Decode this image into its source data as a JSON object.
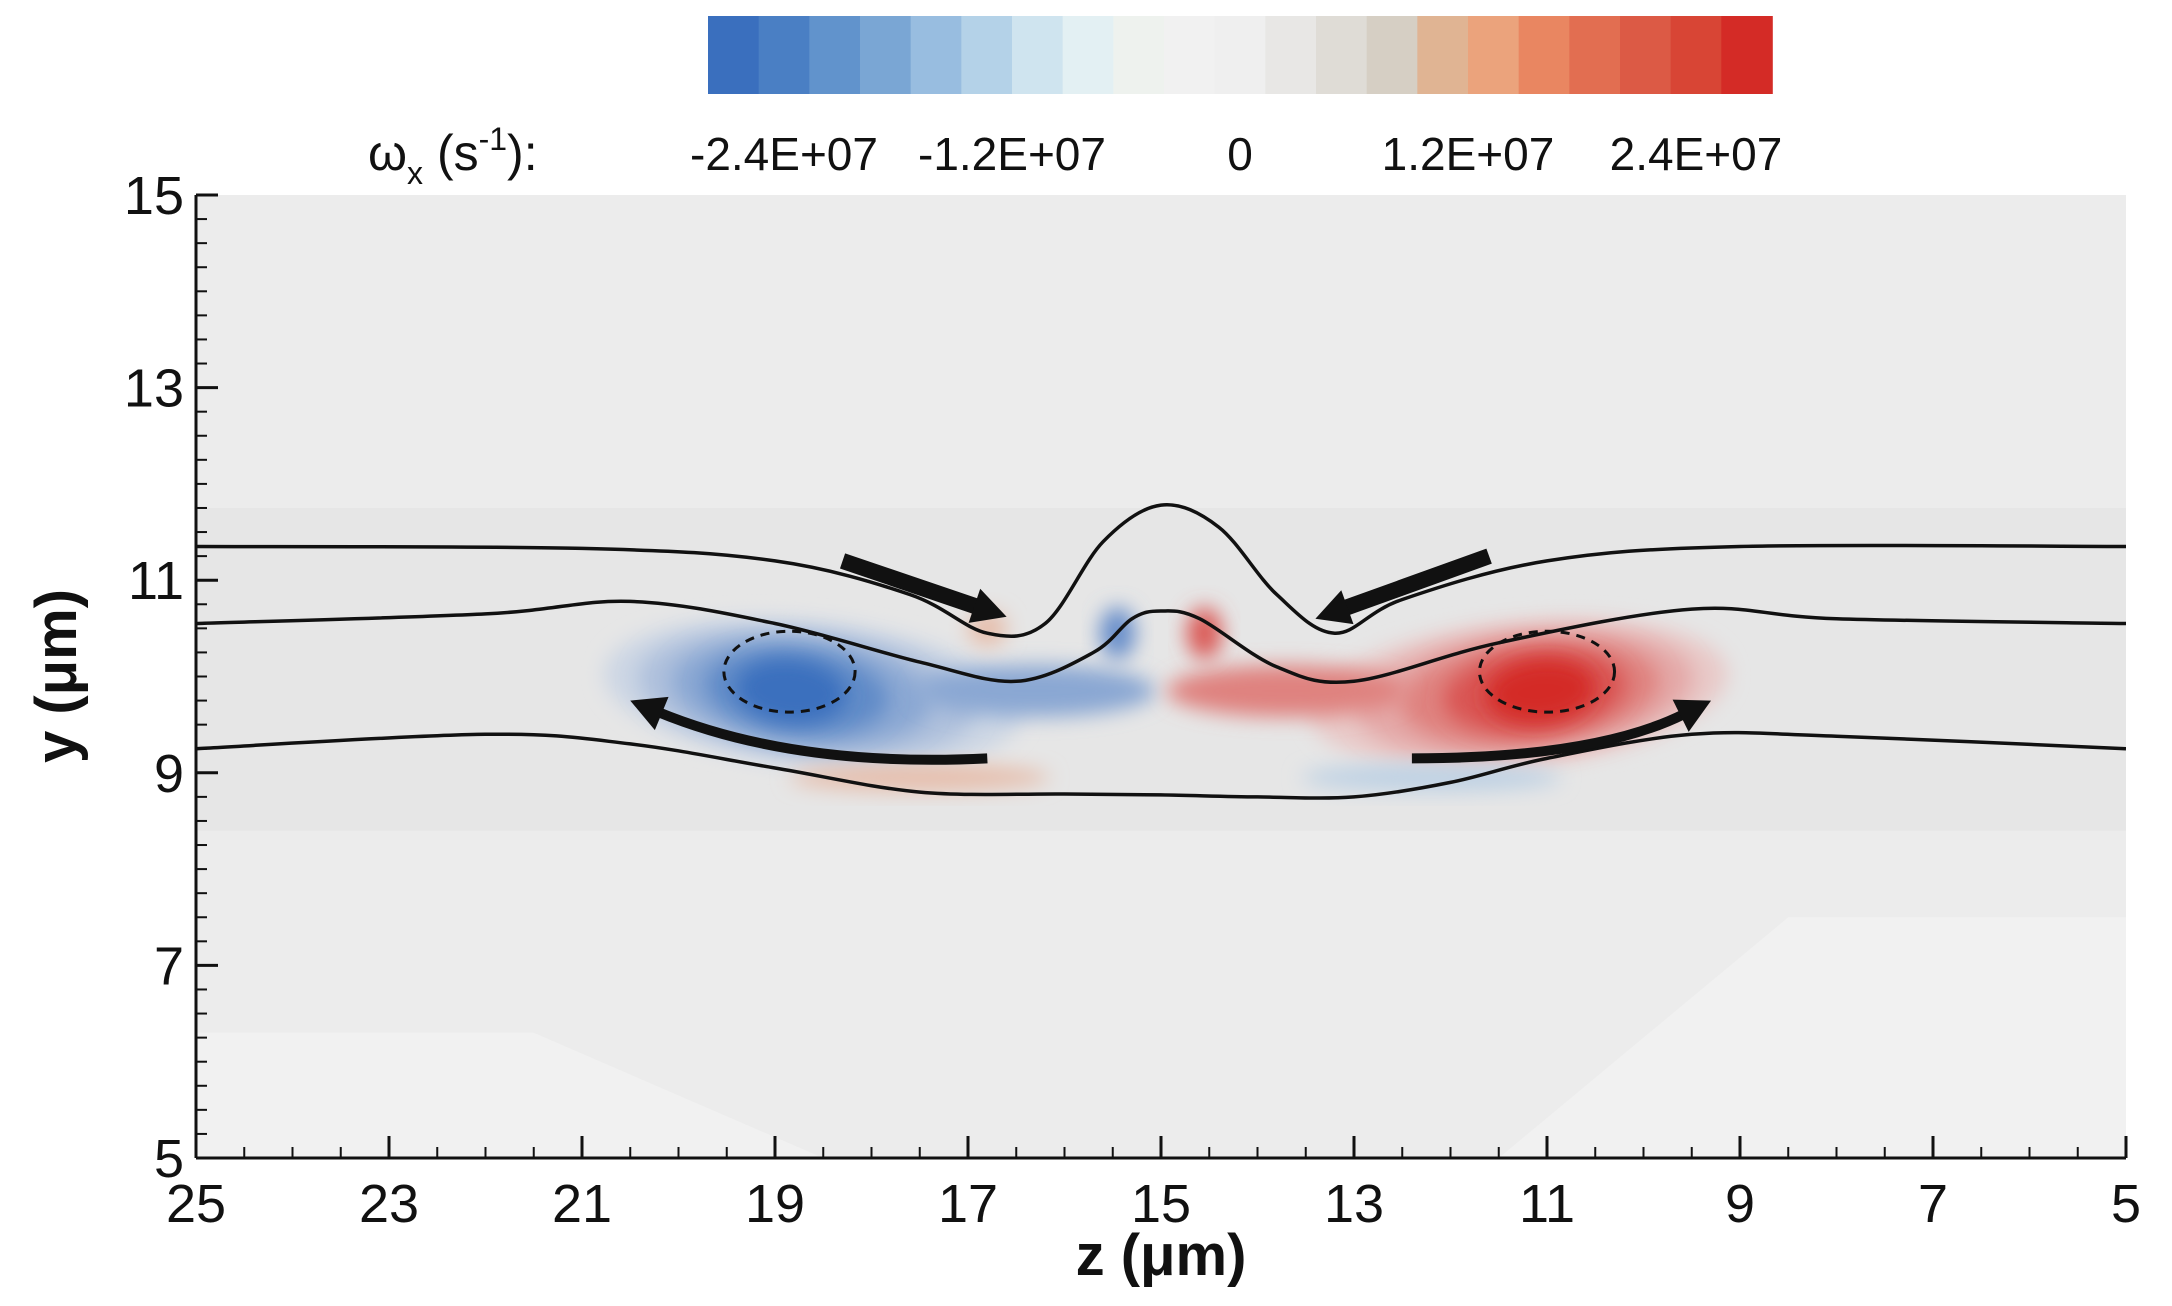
{
  "chart_data": {
    "type": "heatmap",
    "title": "",
    "colorbar": {
      "label_main": "ω",
      "label_sub": "x",
      "label_unit_pre": " (s",
      "label_unit_sup": "-1",
      "label_unit_post": "):",
      "ticks": [
        "-2.4E+07",
        "-1.2E+07",
        "0",
        "1.2E+07",
        "2.4E+07"
      ],
      "tick_values": [
        -24000000,
        -12000000,
        0,
        12000000,
        24000000
      ],
      "range": [
        -28000000,
        28000000
      ],
      "levels": 21
    },
    "x_axis": {
      "label": "z (μm)",
      "range": [
        25,
        5
      ],
      "reversed": true,
      "ticks": [
        "25",
        "23",
        "21",
        "19",
        "17",
        "15",
        "13",
        "11",
        "9",
        "7",
        "5"
      ],
      "tick_values": [
        25,
        23,
        21,
        19,
        17,
        15,
        13,
        11,
        9,
        7,
        5
      ],
      "minor_step": 0.5
    },
    "y_axis": {
      "label": "y (μm)",
      "range": [
        5,
        15
      ],
      "ticks": [
        "5",
        "7",
        "9",
        "11",
        "13",
        "15"
      ],
      "tick_values": [
        5,
        7,
        9,
        11,
        13,
        15
      ],
      "minor_step": 0.25
    },
    "vortices": [
      {
        "name": "negative",
        "center_z": 18.9,
        "center_y": 10.0,
        "peak": -24000000
      },
      {
        "name": "positive",
        "center_z": 11.0,
        "center_y": 10.0,
        "peak": 24000000
      }
    ],
    "contour_lines": [
      {
        "name": "upper-interface",
        "points": [
          [
            25,
            11.35
          ],
          [
            21,
            11.33
          ],
          [
            19,
            11.2
          ],
          [
            17.6,
            10.85
          ],
          [
            16.8,
            10.45
          ],
          [
            16.2,
            10.55
          ],
          [
            15.6,
            11.4
          ],
          [
            15,
            11.78
          ],
          [
            14.4,
            11.55
          ],
          [
            13.8,
            10.85
          ],
          [
            13.2,
            10.45
          ],
          [
            12.5,
            10.8
          ],
          [
            11,
            11.2
          ],
          [
            9,
            11.35
          ],
          [
            5,
            11.35
          ]
        ]
      },
      {
        "name": "middle-interface",
        "points": [
          [
            25,
            10.55
          ],
          [
            22,
            10.65
          ],
          [
            20.5,
            10.78
          ],
          [
            19,
            10.55
          ],
          [
            17.5,
            10.15
          ],
          [
            16.5,
            9.95
          ],
          [
            15.7,
            10.25
          ],
          [
            15.3,
            10.6
          ],
          [
            15,
            10.68
          ],
          [
            14.6,
            10.6
          ],
          [
            13.8,
            10.1
          ],
          [
            13,
            9.95
          ],
          [
            11.5,
            10.35
          ],
          [
            9.5,
            10.7
          ],
          [
            8,
            10.6
          ],
          [
            5,
            10.55
          ]
        ]
      },
      {
        "name": "lower-interface",
        "points": [
          [
            25,
            9.25
          ],
          [
            22,
            9.4
          ],
          [
            20.5,
            9.3
          ],
          [
            19,
            9.05
          ],
          [
            17.5,
            8.8
          ],
          [
            16,
            8.78
          ],
          [
            15,
            8.77
          ],
          [
            14,
            8.75
          ],
          [
            13,
            8.75
          ],
          [
            12,
            8.9
          ],
          [
            11,
            9.15
          ],
          [
            9.5,
            9.4
          ],
          [
            8,
            9.38
          ],
          [
            5,
            9.25
          ]
        ]
      }
    ],
    "dashed_cores": [
      {
        "center_z": 18.85,
        "center_y": 10.05,
        "half_width_z": 0.68,
        "half_height_y": 0.42
      },
      {
        "center_z": 11.0,
        "center_y": 10.05,
        "half_width_z": 0.7,
        "half_height_y": 0.42
      }
    ],
    "arrows": [
      {
        "name": "flow-arrow-upper-left",
        "type": "straight",
        "from": [
          18.3,
          11.2
        ],
        "to": [
          16.6,
          10.62
        ]
      },
      {
        "name": "flow-arrow-upper-right",
        "type": "straight",
        "from": [
          11.6,
          11.25
        ],
        "to": [
          13.4,
          10.6
        ]
      },
      {
        "name": "flow-arrow-lower-left",
        "type": "curved",
        "from": [
          16.8,
          9.15
        ],
        "ctrl": [
          18.8,
          9.05
        ],
        "to": [
          20.5,
          9.75
        ]
      },
      {
        "name": "flow-arrow-lower-right",
        "type": "curved",
        "from": [
          12.4,
          9.15
        ],
        "ctrl": [
          10.5,
          9.15
        ],
        "to": [
          9.3,
          9.75
        ]
      }
    ],
    "colors": {
      "negative_max": "#3a6fbe",
      "positive_max": "#d42b26",
      "neutral": "#ececec",
      "line": "#111111"
    }
  }
}
